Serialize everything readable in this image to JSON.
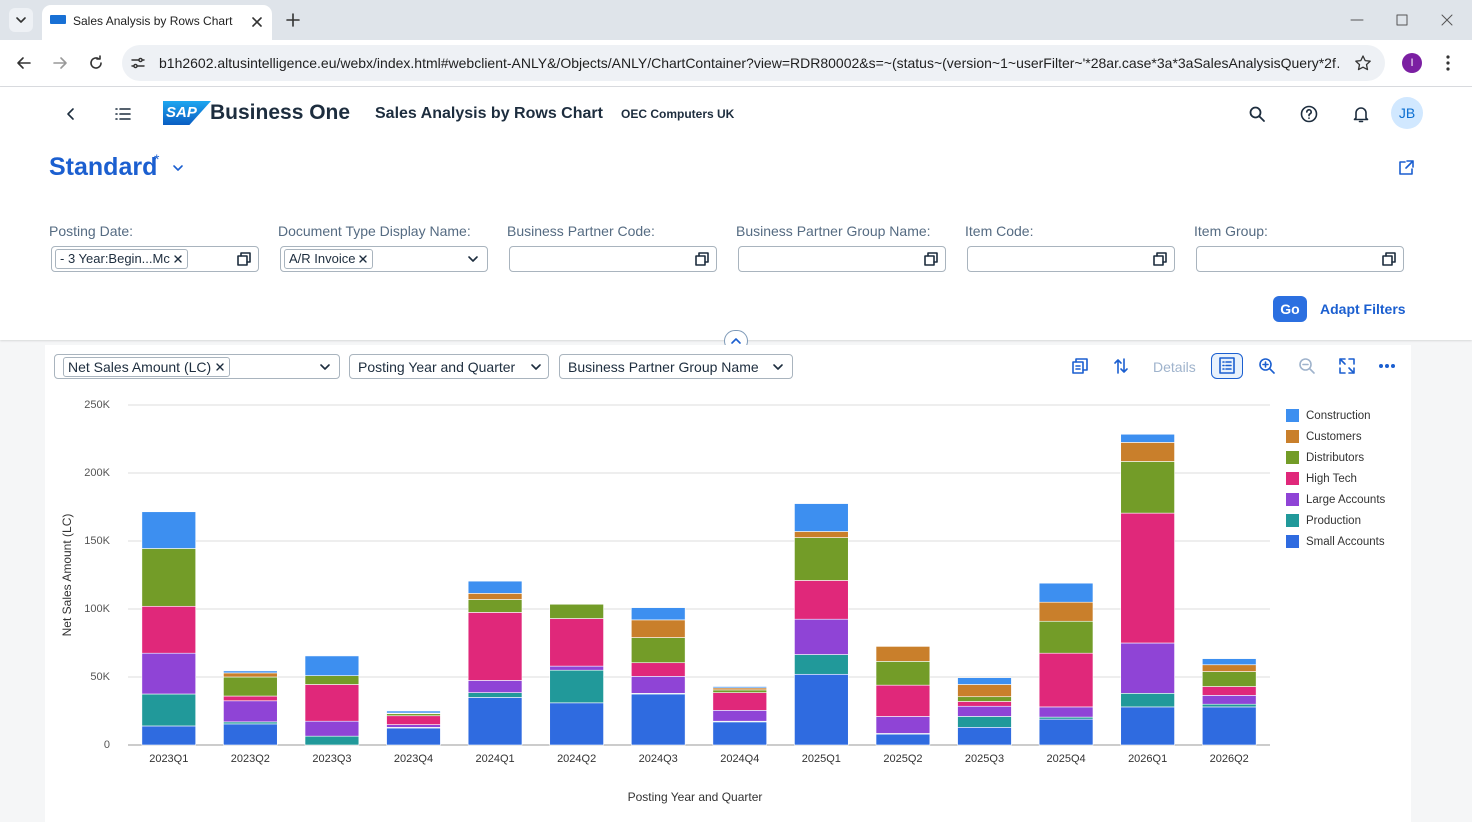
{
  "browser": {
    "tab_title": "Sales Analysis by Rows Chart",
    "url": "b1h2602.altusintelligence.eu/webx/index.html#webclient-ANLY&/Objects/ANLY/ChartContainer?view=RDR80002&s=~(status~(version~1~userFilter~'*28ar.case*3a*3aSalesAnalysisQuery*2f…",
    "profile_initial": "I"
  },
  "header": {
    "logo": "SAP",
    "brand": "Business One",
    "title": "Sales Analysis by Rows Chart",
    "company": "OEC Computers UK",
    "user_initials": "JB"
  },
  "variant": {
    "name": "Standard",
    "modified_marker": "*"
  },
  "filters": [
    {
      "label": "Posting Date:",
      "token": "- 3 Year:Begin...Mc"
    },
    {
      "label": "Document Type Display Name:",
      "token": "A/R Invoice"
    },
    {
      "label": "Business Partner Code:"
    },
    {
      "label": "Business Partner Group Name:"
    },
    {
      "label": "Item Code:"
    },
    {
      "label": "Item Group:"
    }
  ],
  "filter_buttons": {
    "go": "Go",
    "adapt": "Adapt Filters"
  },
  "chart_toolbar": {
    "measure": "Net Sales Amount (LC)",
    "dimension": "Posting Year and Quarter",
    "series_dimension": "Business Partner Group Name",
    "details": "Details"
  },
  "chart_data": {
    "type": "bar",
    "stacked": true,
    "x_label": "Posting Year and Quarter",
    "y_label": "Net Sales Amount (LC)",
    "categories": [
      "2023Q1",
      "2023Q2",
      "2023Q3",
      "2023Q4",
      "2024Q1",
      "2024Q2",
      "2024Q3",
      "2024Q4",
      "2025Q1",
      "2025Q2",
      "2025Q3",
      "2025Q4",
      "2026Q1",
      "2026Q2"
    ],
    "series": [
      {
        "name": "Small Accounts",
        "color": "#2f6be0",
        "values": [
          14000,
          15500,
          0,
          12500,
          35000,
          31000,
          37500,
          17000,
          52000,
          8000,
          13000,
          19000,
          28000,
          28000
        ]
      },
      {
        "name": "Production",
        "color": "#21999a",
        "values": [
          23500,
          1500,
          6500,
          500,
          3500,
          24000,
          500,
          500,
          14500,
          500,
          8000,
          1500,
          10000,
          2000
        ]
      },
      {
        "name": "Large Accounts",
        "color": "#8f44d6",
        "values": [
          30000,
          15500,
          11000,
          2000,
          9000,
          3000,
          12500,
          8000,
          26000,
          12500,
          7500,
          7500,
          37000,
          6500
        ]
      },
      {
        "name": "High Tech",
        "color": "#e0287a",
        "values": [
          34500,
          3500,
          27000,
          6500,
          50000,
          35000,
          10000,
          13000,
          28500,
          23000,
          3500,
          39500,
          95500,
          6500
        ]
      },
      {
        "name": "Distributors",
        "color": "#739c28",
        "values": [
          42500,
          14000,
          6500,
          1500,
          9500,
          10500,
          18500,
          2000,
          31500,
          17500,
          3500,
          23500,
          38000,
          11000
        ]
      },
      {
        "name": "Customers",
        "color": "#c97f2b",
        "values": [
          0,
          3000,
          0,
          500,
          4500,
          0,
          13000,
          1500,
          4500,
          11000,
          9000,
          14000,
          14000,
          5000
        ]
      },
      {
        "name": "Construction",
        "color": "#3d8ff0",
        "values": [
          27000,
          1500,
          14500,
          1500,
          9000,
          0,
          9000,
          1000,
          20500,
          0,
          5000,
          14000,
          6000,
          4500
        ]
      }
    ],
    "ylim": [
      0,
      250000
    ],
    "yticks": [
      0,
      {
        "value": 50000,
        "label": "50K"
      },
      {
        "value": 100000,
        "label": "100K"
      },
      {
        "value": 150000,
        "label": "150K"
      },
      {
        "value": 200000,
        "label": "200K"
      },
      {
        "value": 250000,
        "label": "250K"
      }
    ],
    "grid": true,
    "legend": "right"
  }
}
